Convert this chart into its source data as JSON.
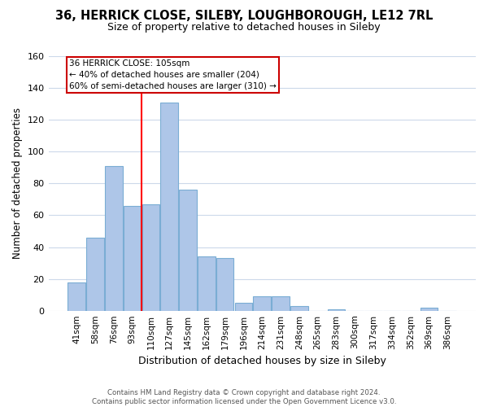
{
  "title_line1": "36, HERRICK CLOSE, SILEBY, LOUGHBOROUGH, LE12 7RL",
  "title_line2": "Size of property relative to detached houses in Sileby",
  "xlabel": "Distribution of detached houses by size in Sileby",
  "ylabel": "Number of detached properties",
  "bar_labels": [
    "41sqm",
    "58sqm",
    "76sqm",
    "93sqm",
    "110sqm",
    "127sqm",
    "145sqm",
    "162sqm",
    "179sqm",
    "196sqm",
    "214sqm",
    "231sqm",
    "248sqm",
    "265sqm",
    "283sqm",
    "300sqm",
    "317sqm",
    "334sqm",
    "352sqm",
    "369sqm",
    "386sqm"
  ],
  "bar_values": [
    18,
    46,
    91,
    66,
    67,
    131,
    76,
    34,
    33,
    5,
    9,
    9,
    3,
    0,
    1,
    0,
    0,
    0,
    0,
    2,
    0
  ],
  "bar_color": "#aec6e8",
  "bar_edge_color": "#7aadd4",
  "red_line_x": 3.5,
  "annotation_line1": "36 HERRICK CLOSE: 105sqm",
  "annotation_line2": "← 40% of detached houses are smaller (204)",
  "annotation_line3": "60% of semi-detached houses are larger (310) →",
  "annotation_box_color": "#ffffff",
  "annotation_box_edge_color": "#cc0000",
  "ylim": [
    0,
    160
  ],
  "yticks": [
    0,
    20,
    40,
    60,
    80,
    100,
    120,
    140,
    160
  ],
  "footer_line1": "Contains HM Land Registry data © Crown copyright and database right 2024.",
  "footer_line2": "Contains public sector information licensed under the Open Government Licence v3.0.",
  "background_color": "#ffffff",
  "grid_color": "#ccd9ea"
}
